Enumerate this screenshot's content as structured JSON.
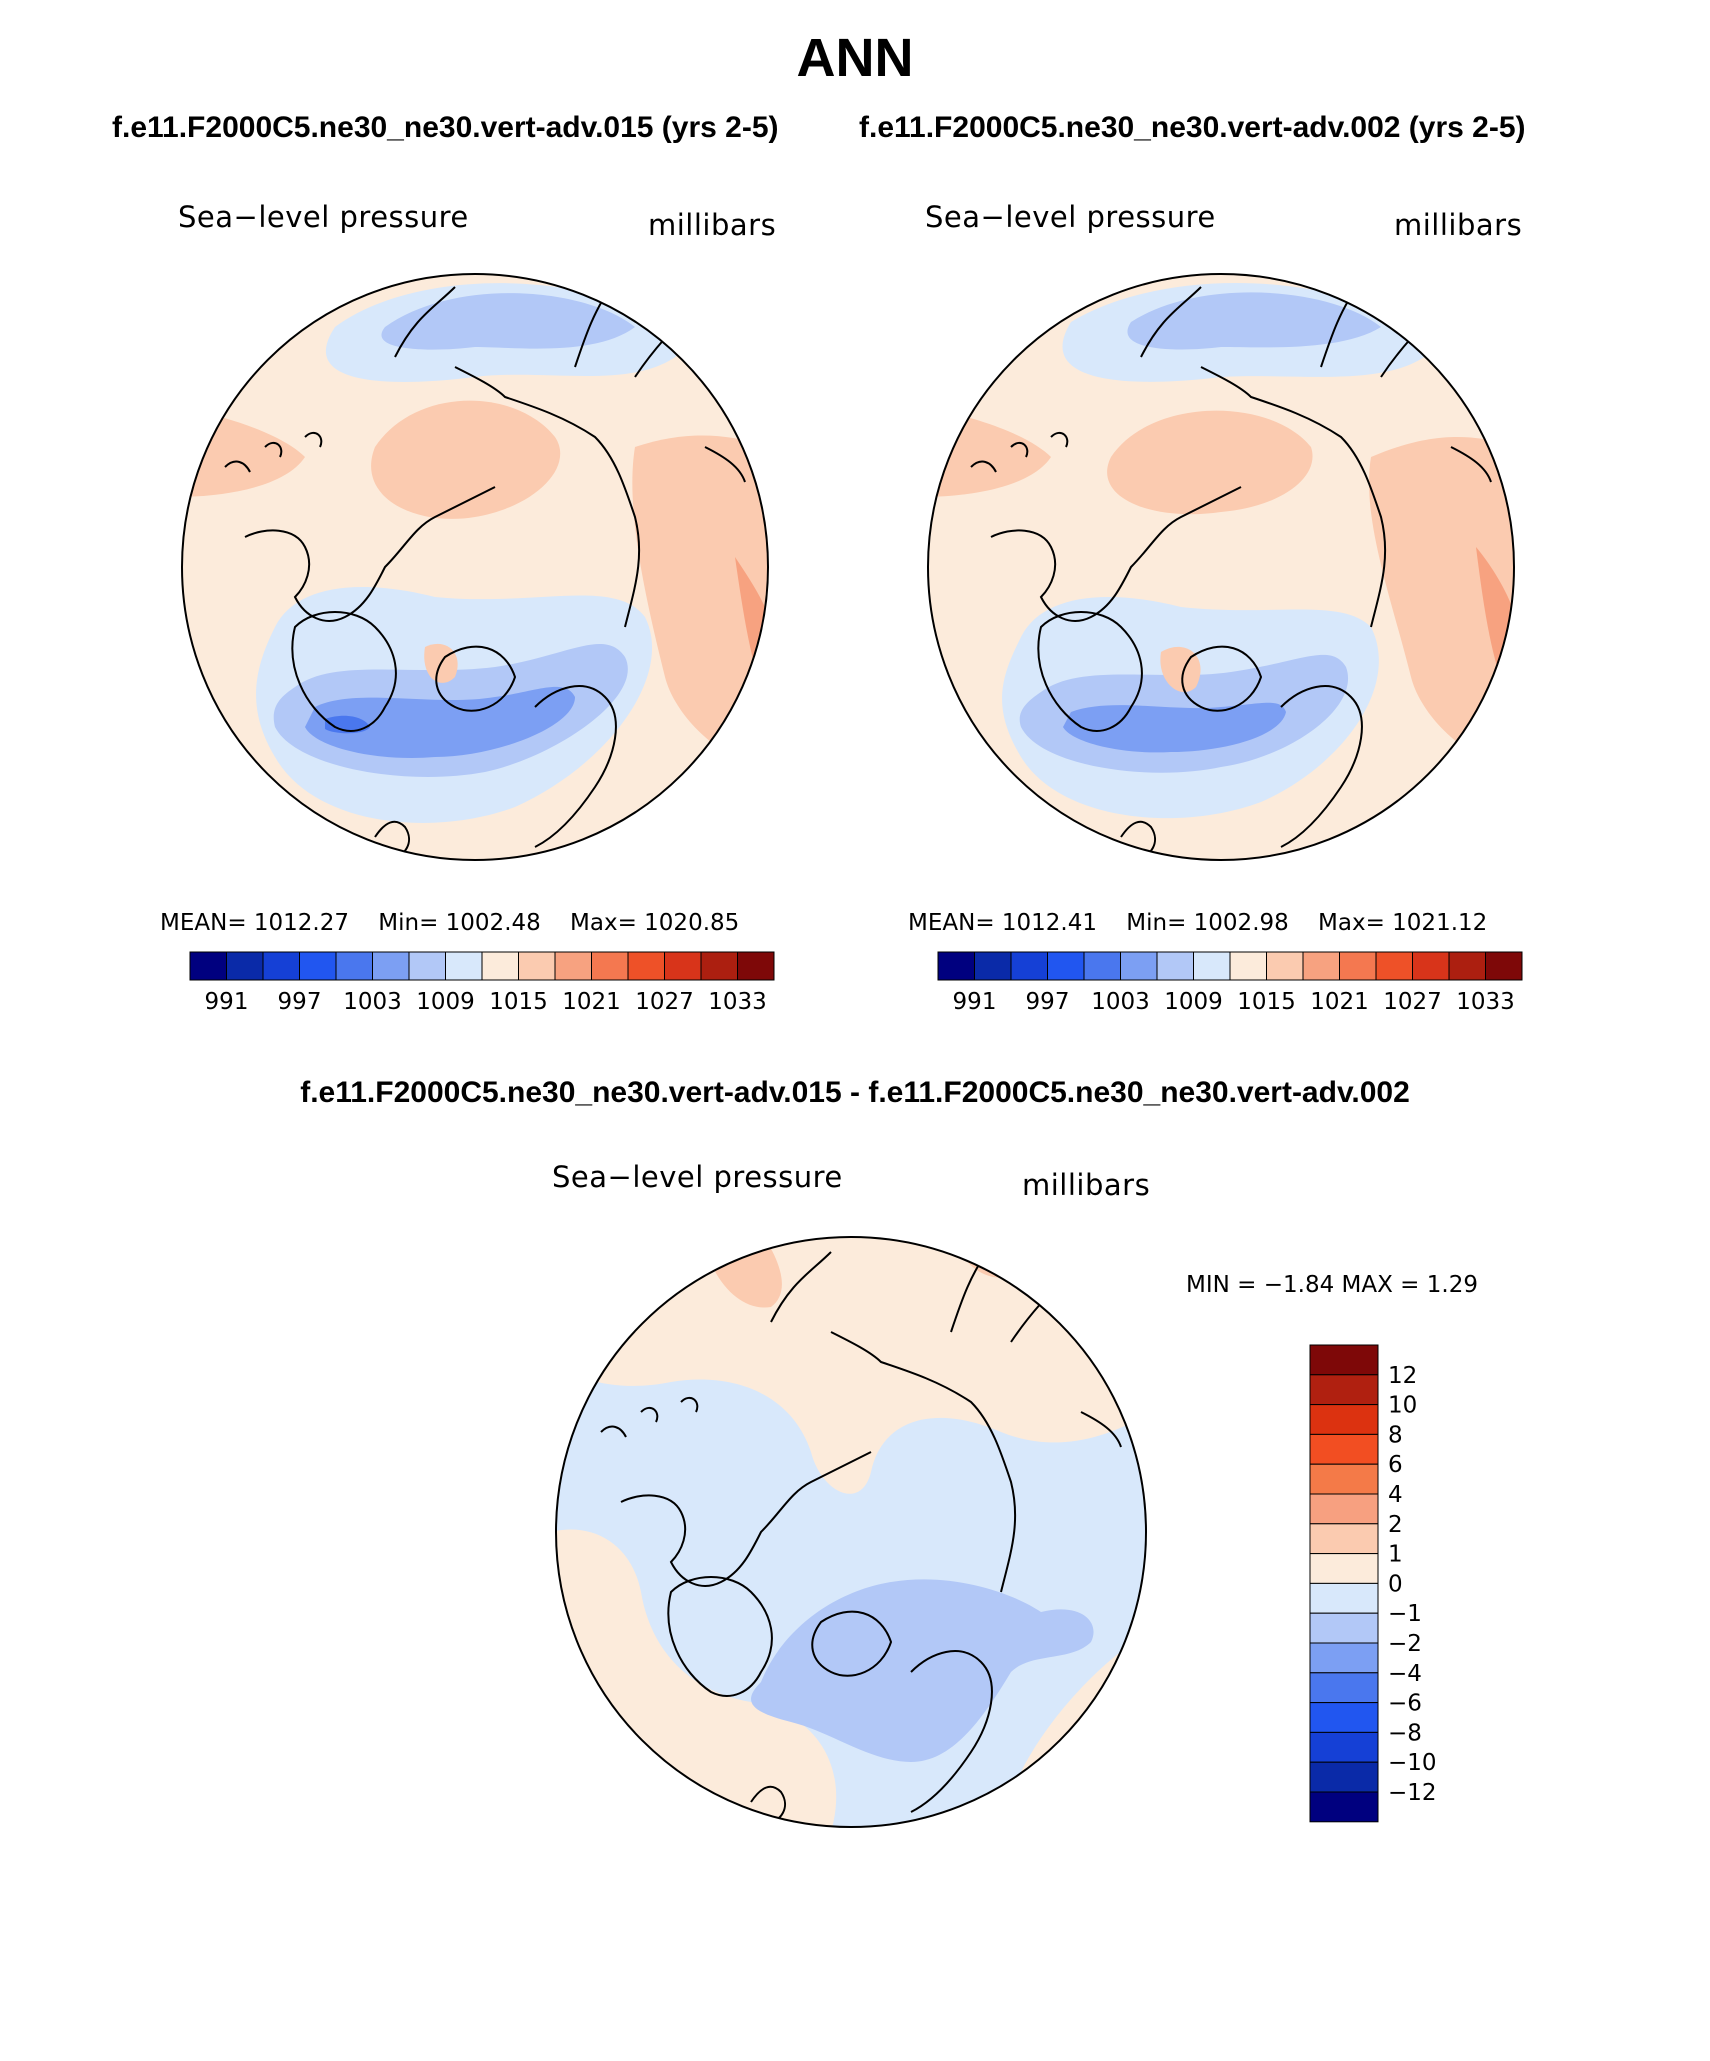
{
  "figure": {
    "title": "ANN",
    "diff_title": "f.e11.F2000C5.ne30_ne30.vert-adv.015 - f.e11.F2000C5.ne30_ne30.vert-adv.002"
  },
  "panels": [
    {
      "case_title": "f.e11.F2000C5.ne30_ne30.vert-adv.015 (yrs 2-5)",
      "field_label": "Sea−level pressure",
      "units_label": "millibars",
      "mean_text": "MEAN= 1012.27",
      "min_text": "Min= 1002.48",
      "max_text": "Max= 1020.85"
    },
    {
      "case_title": "f.e11.F2000C5.ne30_ne30.vert-adv.002 (yrs 2-5)",
      "field_label": "Sea−level pressure",
      "units_label": "millibars",
      "mean_text": "MEAN= 1012.41",
      "min_text": "Min= 1002.98",
      "max_text": "Max= 1021.12"
    },
    {
      "field_label": "Sea−level pressure",
      "units_label": "millibars",
      "minmax_text": "MIN =   −1.84 MAX =    1.29"
    }
  ],
  "colorbars": {
    "abs": {
      "colors": [
        "#00007f",
        "#0a2aa8",
        "#1540d6",
        "#2156f0",
        "#4a77ee",
        "#7c9ff3",
        "#b2c8f7",
        "#d8e8fb",
        "#fcebdb",
        "#fbcbb0",
        "#f7a280",
        "#f47850",
        "#ee5128",
        "#d8341a",
        "#ac1f10",
        "#7e0808"
      ],
      "tick_labels": [
        "991",
        "997",
        "1003",
        "1009",
        "1015",
        "1021",
        "1027",
        "1033"
      ]
    },
    "diff": {
      "colors": [
        "#7e0808",
        "#b02010",
        "#dc3210",
        "#f24e22",
        "#f47a48",
        "#f7a080",
        "#fbcbb0",
        "#fcebdb",
        "#d8e8fb",
        "#b2c8f7",
        "#7c9ff3",
        "#4a77ee",
        "#2156f0",
        "#1540d6",
        "#0a2aa8",
        "#00007f"
      ],
      "tick_labels": [
        "12",
        "10",
        "8",
        "6",
        "4",
        "2",
        "1",
        "0",
        "−1",
        "−2",
        "−4",
        "−6",
        "−8",
        "−10",
        "−12"
      ]
    }
  },
  "map_colors": {
    "d2": "#4a77ee",
    "b1": "#7c9ff3",
    "b2": "#b2c8f7",
    "b3": "#d8e8fb",
    "r1": "#fcebdb",
    "r2": "#fbcbb0",
    "r3": "#f7a280",
    "coast": "#000000"
  }
}
